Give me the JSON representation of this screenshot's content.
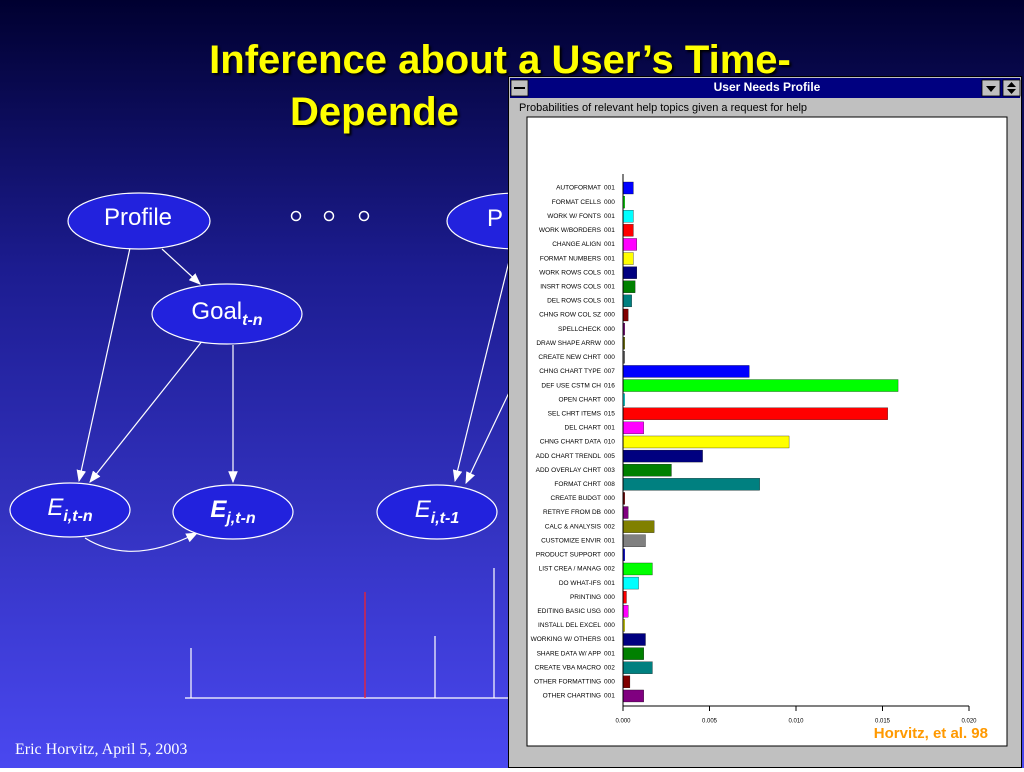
{
  "slide": {
    "title_line1": "Inference about a User’s Time-",
    "title_line2": "Depende",
    "nodes": [
      {
        "label": "Profile"
      },
      {
        "label": "Goal",
        "subscript": "t-n"
      },
      {
        "label": "E",
        "subscript": "i,t-n"
      },
      {
        "label": "E",
        "subscript": "j,t-n"
      },
      {
        "label": "E",
        "subscript": "i,t-1"
      },
      {
        "label": "P"
      }
    ],
    "footer": "Eric Horvitz, April 5, 2003",
    "citation": "Horvitz, et al. 98"
  },
  "window": {
    "title": "User Needs Profile"
  },
  "chart_data": {
    "type": "hbar",
    "title": "Probabilities of relevant help topics given a request for help",
    "categories": [
      "AUTOFORMAT",
      "FORMAT CELLS",
      "WORK W/ FONTS",
      "WORK W/BORDERS",
      "CHANGE ALIGN",
      "FORMAT NUMBERS",
      "WORK ROWS COLS",
      "INSRT ROWS COLS",
      "DEL ROWS COLS",
      "CHNG ROW COL SZ",
      "SPELLCHECK",
      "DRAW SHAPE ARRW",
      "CREATE NEW CHRT",
      "CHNG CHART TYPE",
      "DEF USE CSTM CH",
      "OPEN CHART",
      "SEL CHRT ITEMS",
      "DEL CHART",
      "CHNG CHART DATA",
      "ADD CHART TRENDL",
      "ADD OVERLAY CHRT",
      "FORMAT CHRT",
      "CREATE BUDGT",
      "RETRYE FROM DB",
      "CALC & ANALYSIS",
      "CUSTOMIZE ENVIR",
      "PRODUCT SUPPORT",
      "LIST CREA / MANAG",
      "DO WHAT-IFS",
      "PRINTING",
      "EDITING BASIC USG",
      "INSTALL DEL EXCEL",
      "WORKING W/ OTHERS",
      "SHARE DATA W/ APP",
      "CREATE VBA MACRO",
      "OTHER FORMATTING",
      "OTHER CHARTING"
    ],
    "values": [
      0.0006,
      0.0001,
      0.0006,
      0.0006,
      0.0008,
      0.0006,
      0.0008,
      0.0007,
      0.0005,
      0.0003,
      0.0001,
      0.0001,
      0.0001,
      0.0073,
      0.0159,
      0.0001,
      0.0153,
      0.0012,
      0.0096,
      0.0046,
      0.0028,
      0.0079,
      0.0001,
      0.0003,
      0.0018,
      0.0013,
      0.0001,
      0.0017,
      0.0009,
      0.0002,
      0.0003,
      0.0001,
      0.0013,
      0.0012,
      0.0017,
      0.0004,
      0.0012
    ],
    "value_labels": [
      "001",
      "000",
      "001",
      "001",
      "001",
      "001",
      "001",
      "001",
      "001",
      "000",
      "000",
      "000",
      "000",
      "007",
      "016",
      "000",
      "015",
      "001",
      "010",
      "005",
      "003",
      "008",
      "000",
      "000",
      "002",
      "001",
      "000",
      "002",
      "001",
      "000",
      "000",
      "000",
      "001",
      "001",
      "002",
      "000",
      "001"
    ],
    "colors": [
      "#0000ff",
      "#00ff00",
      "#00ffff",
      "#ff0000",
      "#ff00ff",
      "#ffff00",
      "#000080",
      "#008000",
      "#008080",
      "#800000",
      "#800080",
      "#808000",
      "#808080"
    ],
    "xlim": [
      0,
      0.02
    ],
    "xticks": [
      {
        "value": 0,
        "label": "0.000"
      },
      {
        "value": 0.005,
        "label": "0.005"
      },
      {
        "value": 0.01,
        "label": "0.010"
      },
      {
        "value": 0.015,
        "label": "0.015"
      },
      {
        "value": 0.02,
        "label": "0.020"
      }
    ]
  }
}
